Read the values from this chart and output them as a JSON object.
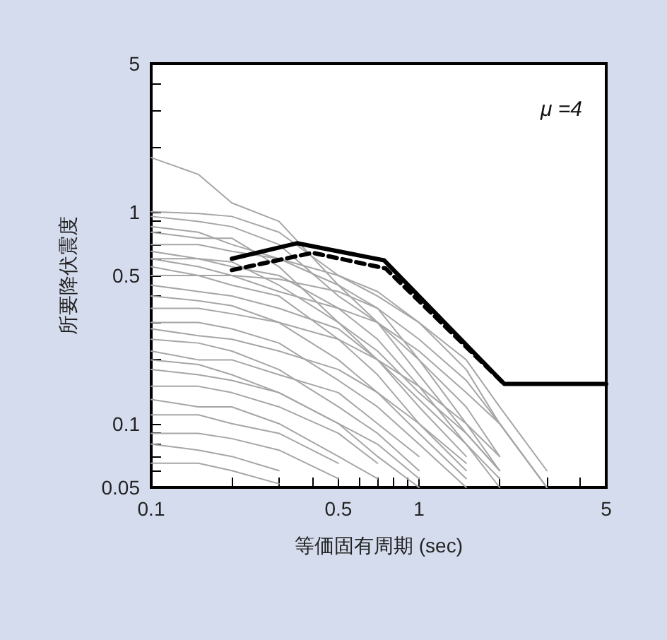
{
  "chart_data": {
    "type": "line",
    "xlabel": "等価固有周期 (sec)",
    "ylabel": "所要降伏震度",
    "annotations": [
      "μ =4"
    ],
    "log": "xy",
    "grid": false,
    "marker": "none",
    "xlim": [
      0.1,
      5
    ],
    "ylim": [
      0.05,
      5
    ],
    "xticks": [
      0.1,
      {
        "value": 0.2,
        "label": null
      },
      {
        "value": 0.3,
        "label": null
      },
      {
        "value": 0.4,
        "label": null
      },
      0.5,
      {
        "value": 0.6,
        "label": null
      },
      {
        "value": 0.7,
        "label": null
      },
      {
        "value": 0.8,
        "label": null
      },
      {
        "value": 0.9,
        "label": null
      },
      1,
      {
        "value": 2,
        "label": null
      },
      {
        "value": 3,
        "label": null
      },
      {
        "value": 4,
        "label": null
      },
      5
    ],
    "yticks": [
      0.05,
      {
        "value": 0.06,
        "label": null
      },
      {
        "value": 0.07,
        "label": null
      },
      {
        "value": 0.08,
        "label": null
      },
      {
        "value": 0.09,
        "label": null
      },
      0.1,
      {
        "value": 0.2,
        "label": null
      },
      {
        "value": 0.3,
        "label": null
      },
      {
        "value": 0.4,
        "label": null
      },
      0.5,
      {
        "value": 0.6,
        "label": null
      },
      {
        "value": 0.7,
        "label": null
      },
      {
        "value": 0.8,
        "label": null
      },
      {
        "value": 0.9,
        "label": null
      },
      1,
      {
        "value": 2,
        "label": null
      },
      {
        "value": 3,
        "label": null
      },
      {
        "value": 4,
        "label": null
      },
      5
    ],
    "x": [
      0.1,
      0.15,
      0.2,
      0.3,
      0.5,
      0.7,
      1,
      1.5,
      2,
      3
    ],
    "series": [
      {
        "color": "#a6a6a6",
        "values": [
          1.8,
          1.5,
          1.1,
          0.9,
          0.45,
          0.3,
          0.17,
          0.09,
          0.06,
          null
        ]
      },
      {
        "color": "#a6a6a6",
        "values": [
          1.0,
          0.98,
          0.95,
          0.8,
          0.5,
          0.42,
          0.3,
          0.2,
          0.12,
          0.06
        ]
      },
      {
        "color": "#a6a6a6",
        "values": [
          0.95,
          0.9,
          0.85,
          0.7,
          0.4,
          0.3,
          0.22,
          0.14,
          0.1,
          0.05
        ]
      },
      {
        "color": "#a6a6a6",
        "values": [
          0.85,
          0.8,
          0.7,
          0.6,
          0.45,
          0.35,
          0.2,
          0.1,
          0.06,
          null
        ]
      },
      {
        "color": "#a6a6a6",
        "values": [
          0.8,
          0.75,
          0.75,
          0.55,
          0.3,
          0.2,
          0.13,
          0.08,
          0.055,
          null
        ]
      },
      {
        "color": "#a6a6a6",
        "values": [
          0.7,
          0.7,
          0.65,
          0.6,
          0.5,
          0.4,
          0.3,
          0.18,
          0.1,
          0.05
        ]
      },
      {
        "color": "#a6a6a6",
        "values": [
          0.65,
          0.6,
          0.55,
          0.5,
          0.35,
          0.25,
          0.15,
          0.08,
          0.05,
          null
        ]
      },
      {
        "color": "#a6a6a6",
        "values": [
          0.6,
          0.6,
          0.58,
          0.45,
          0.3,
          0.22,
          0.14,
          0.09,
          0.06,
          null
        ]
      },
      {
        "color": "#a6a6a6",
        "values": [
          0.6,
          0.55,
          0.5,
          0.48,
          0.42,
          0.35,
          0.25,
          0.16,
          0.1,
          0.05
        ]
      },
      {
        "color": "#a6a6a6",
        "values": [
          0.55,
          0.5,
          0.5,
          0.42,
          0.35,
          0.3,
          0.2,
          0.12,
          0.07,
          null
        ]
      },
      {
        "color": "#a6a6a6",
        "values": [
          0.5,
          0.5,
          0.45,
          0.4,
          0.25,
          0.17,
          0.1,
          0.06,
          null,
          null
        ]
      },
      {
        "color": "#a6a6a6",
        "values": [
          0.45,
          0.42,
          0.4,
          0.35,
          0.28,
          0.2,
          0.15,
          0.1,
          0.07,
          null
        ]
      },
      {
        "color": "#a6a6a6",
        "values": [
          0.4,
          0.38,
          0.36,
          0.3,
          0.2,
          0.14,
          0.09,
          0.055,
          null,
          null
        ]
      },
      {
        "color": "#a6a6a6",
        "values": [
          0.35,
          0.35,
          0.33,
          0.3,
          0.25,
          0.2,
          0.12,
          0.07,
          null,
          null
        ]
      },
      {
        "color": "#a6a6a6",
        "values": [
          0.3,
          0.3,
          0.28,
          0.24,
          0.16,
          0.12,
          0.08,
          0.05,
          null,
          null
        ]
      },
      {
        "color": "#a6a6a6",
        "values": [
          0.28,
          0.26,
          0.25,
          0.22,
          0.18,
          0.14,
          0.1,
          0.065,
          null,
          null
        ]
      },
      {
        "color": "#a6a6a6",
        "values": [
          0.25,
          0.24,
          0.22,
          0.18,
          0.12,
          0.09,
          0.06,
          null,
          null,
          null
        ]
      },
      {
        "color": "#a6a6a6",
        "values": [
          0.22,
          0.2,
          0.2,
          0.17,
          0.14,
          0.1,
          0.07,
          null,
          null,
          null
        ]
      },
      {
        "color": "#a6a6a6",
        "values": [
          0.2,
          0.19,
          0.17,
          0.14,
          0.1,
          0.07,
          0.05,
          null,
          null,
          null
        ]
      },
      {
        "color": "#a6a6a6",
        "values": [
          0.18,
          0.17,
          0.16,
          0.14,
          0.1,
          0.08,
          0.055,
          null,
          null,
          null
        ]
      },
      {
        "color": "#a6a6a6",
        "values": [
          0.15,
          0.15,
          0.14,
          0.12,
          0.09,
          0.065,
          null,
          null,
          null,
          null
        ]
      },
      {
        "color": "#a6a6a6",
        "values": [
          0.13,
          0.12,
          0.12,
          0.1,
          0.07,
          0.055,
          null,
          null,
          null,
          null
        ]
      },
      {
        "color": "#a6a6a6",
        "values": [
          0.11,
          0.11,
          0.1,
          0.09,
          0.065,
          null,
          null,
          null,
          null,
          null
        ]
      },
      {
        "color": "#a6a6a6",
        "values": [
          0.09,
          0.09,
          0.085,
          0.075,
          0.055,
          null,
          null,
          null,
          null,
          null
        ]
      },
      {
        "color": "#a6a6a6",
        "values": [
          0.08,
          0.075,
          0.07,
          0.06,
          null,
          null,
          null,
          null,
          null,
          null
        ]
      },
      {
        "color": "#a6a6a6",
        "values": [
          0.065,
          0.065,
          0.06,
          0.052,
          null,
          null,
          null,
          null,
          null,
          null
        ]
      },
      {
        "color": "#000000",
        "line_style": "solid",
        "x": [
          0.2,
          0.35,
          0.74,
          2.08,
          5
        ],
        "values": [
          0.6,
          0.71,
          0.59,
          0.154,
          0.154
        ]
      },
      {
        "color": "#000000",
        "line_style": "dashed",
        "x": [
          0.2,
          0.4,
          0.75,
          2.08
        ],
        "values": [
          0.53,
          0.64,
          0.54,
          0.154
        ]
      }
    ]
  }
}
